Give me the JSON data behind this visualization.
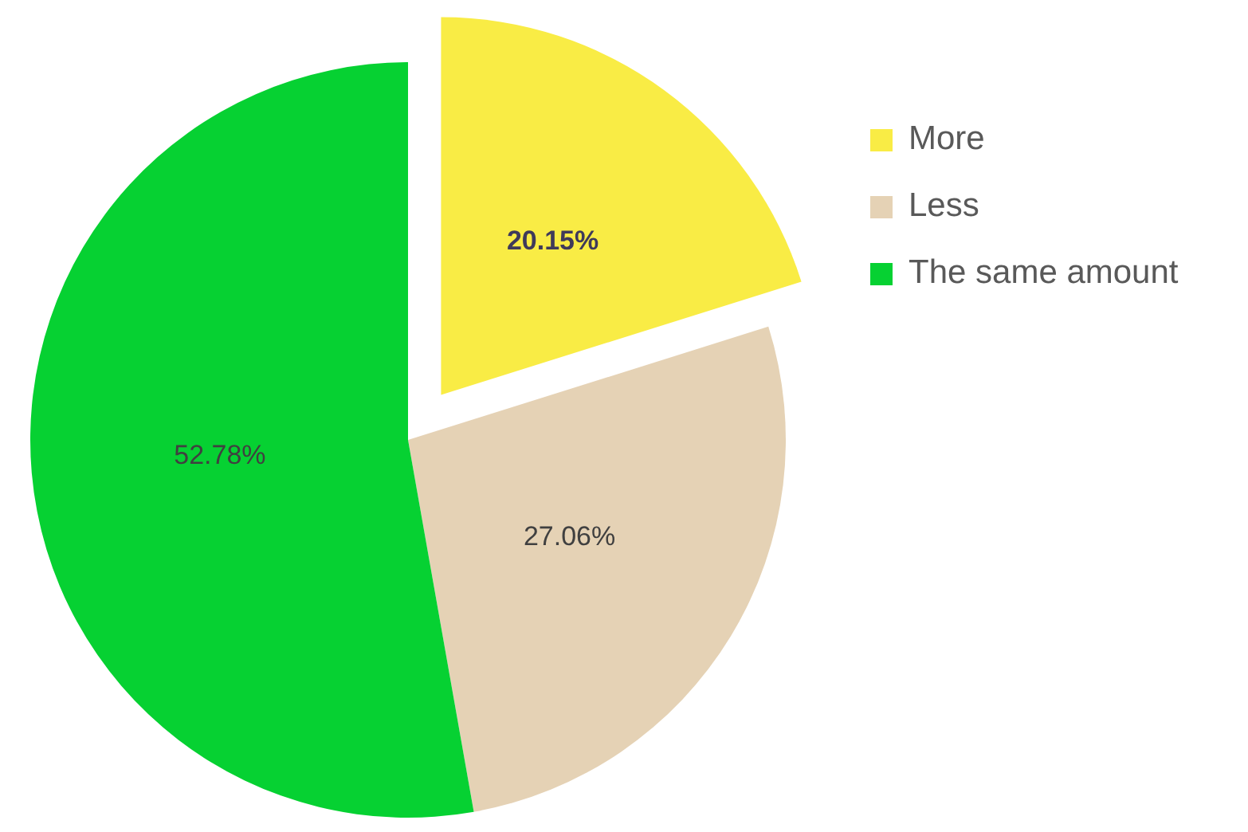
{
  "chart_data": {
    "type": "pie",
    "categories": [
      "More",
      "Less",
      "The same amount"
    ],
    "values": [
      20.15,
      27.06,
      52.78
    ],
    "colors": [
      "#f9ec45",
      "#e5d2b5",
      "#06d132"
    ],
    "value_labels": [
      "20.15%",
      "27.06%",
      "52.78%"
    ],
    "legend": "right"
  }
}
